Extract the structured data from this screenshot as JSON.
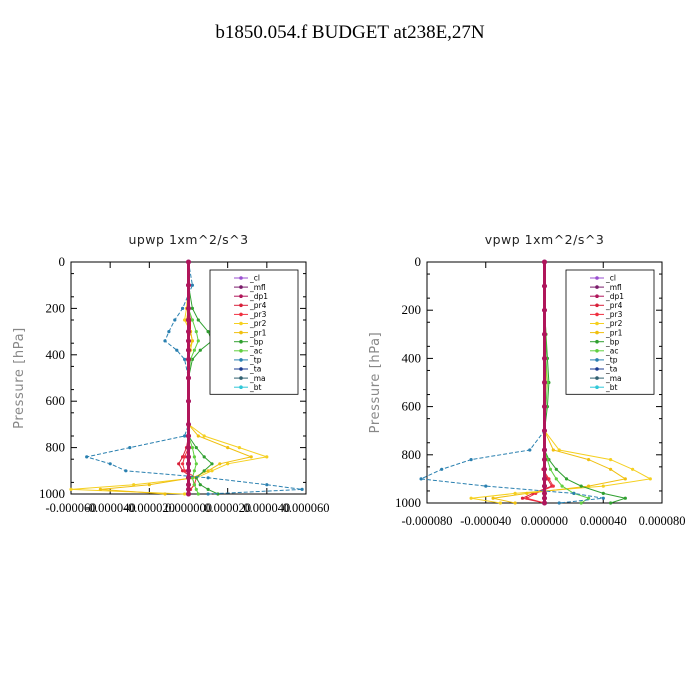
{
  "title": "b1850.054.f  BUDGET at238E,27N",
  "colors": {
    "_cl": "#9a4fd0",
    "_mfl": "#7a1a6a",
    "_dp1": "#b0155a",
    "_pr4": "#d8203a",
    "_pr3": "#f03040",
    "_pr2": "#f5d020",
    "_pr1": "#f0c010",
    "_bp": "#30a030",
    "_ac": "#60d040",
    "_tp": "#2a80b0",
    "_ta": "#1a3a90",
    "_ma": "#306070",
    "_bt": "#30c8d8"
  },
  "chart_data": [
    {
      "type": "line",
      "title": "upwp   1xm^2/s^3",
      "ylabel": "Pressure [hPa]",
      "xlabel": "",
      "ylim": [
        1000,
        0
      ],
      "xlim": [
        -6e-05,
        6e-05
      ],
      "yticks": [
        0,
        200,
        400,
        600,
        800,
        1000
      ],
      "xtick_labels": [
        "-0.000060",
        "-0.000040",
        "-0.000020",
        "0.000000",
        "0.000020",
        "0.000040",
        "0.000060"
      ],
      "xticks": [
        -6e-05,
        -4e-05,
        -2e-05,
        0,
        2e-05,
        4e-05,
        6e-05
      ],
      "grid": false,
      "legend_position": "top-right",
      "legend": [
        "_cl",
        "_mfl",
        "_dp1",
        "_pr4",
        "_pr3",
        "_pr2",
        "_pr1",
        "_bp",
        "_ac",
        "_tp",
        "_ta",
        "_ma",
        "_bt"
      ],
      "p": [
        0,
        100,
        200,
        250,
        300,
        340,
        380,
        420,
        500,
        600,
        700,
        750,
        800,
        840,
        870,
        900,
        930,
        960,
        980,
        1000
      ],
      "series": [
        {
          "name": "_cl",
          "values": [
            0,
            0,
            0,
            0,
            0,
            0,
            0,
            0,
            0,
            0,
            0,
            0,
            0,
            0,
            0,
            0,
            0,
            0,
            0,
            0
          ]
        },
        {
          "name": "_mfl",
          "values": [
            0,
            0,
            0,
            0,
            0,
            0,
            0,
            0,
            0,
            0,
            0,
            0,
            0,
            0,
            0,
            0,
            0,
            0,
            0,
            0
          ]
        },
        {
          "name": "_dp1",
          "values": [
            0,
            0,
            0,
            0,
            0,
            0,
            0,
            0,
            0,
            0,
            0,
            0,
            0,
            0,
            0,
            0,
            0,
            0,
            0,
            0
          ]
        },
        {
          "name": "_pr4",
          "values": [
            0,
            0,
            0,
            1e-06,
            1e-06,
            0,
            0,
            0,
            0,
            0,
            0,
            0,
            -1e-06,
            -3e-06,
            -5e-06,
            -3e-06,
            2e-06,
            3e-06,
            1e-06,
            0
          ]
        },
        {
          "name": "_pr3",
          "values": [
            0,
            0,
            0,
            0,
            0,
            0,
            0,
            0,
            0,
            0,
            0,
            0,
            0,
            -2e-06,
            -3e-06,
            -2e-06,
            4e-06,
            3e-06,
            1e-06,
            0
          ]
        },
        {
          "name": "_pr2",
          "values": [
            0,
            0,
            -1e-06,
            -2e-06,
            1e-06,
            2e-06,
            1e-06,
            0,
            0,
            0,
            0,
            8e-06,
            2.6e-05,
            4e-05,
            2e-05,
            1.2e-05,
            4e-06,
            -2.8e-05,
            -6e-05,
            -2e-06
          ]
        },
        {
          "name": "_pr1",
          "values": [
            0,
            0,
            0,
            -1e-06,
            1e-06,
            2e-06,
            0,
            0,
            0,
            0,
            0,
            5e-06,
            2e-05,
            3.2e-05,
            1.6e-05,
            1e-05,
            2e-06,
            -2e-05,
            -4.5e-05,
            -1.2e-05
          ]
        },
        {
          "name": "_bp",
          "values": [
            0,
            0,
            2e-06,
            5e-06,
            1e-05,
            1.2e-05,
            6e-06,
            2e-06,
            0,
            0,
            0,
            0,
            4e-06,
            8e-06,
            1.2e-05,
            8e-06,
            4e-06,
            6e-06,
            1e-05,
            1.5e-05
          ]
        },
        {
          "name": "_ac",
          "values": [
            0,
            0,
            0,
            2e-06,
            4e-06,
            5e-06,
            3e-06,
            1e-06,
            0,
            0,
            0,
            0,
            2e-06,
            3e-06,
            4e-06,
            3e-06,
            2e-06,
            3e-06,
            4e-06,
            5e-06
          ]
        },
        {
          "name": "_tp",
          "values": [
            0,
            2e-06,
            -3e-06,
            -7e-06,
            -1e-05,
            -1.2e-05,
            -6e-06,
            -2e-06,
            0,
            0,
            0,
            -2e-06,
            -3e-05,
            -5.2e-05,
            -4e-05,
            -3.2e-05,
            1e-05,
            4e-05,
            5.8e-05,
            1e-05
          ]
        },
        {
          "name": "_ta",
          "values": [
            0,
            0,
            0,
            0,
            0,
            0,
            0,
            0,
            0,
            0,
            0,
            0,
            0,
            0,
            0,
            0,
            0,
            0,
            0,
            0
          ]
        },
        {
          "name": "_ma",
          "values": [
            0,
            0,
            0,
            0,
            0,
            0,
            0,
            0,
            0,
            0,
            0,
            0,
            0,
            0,
            0,
            0,
            0,
            0,
            0,
            0
          ]
        },
        {
          "name": "_bt",
          "values": [
            0,
            0,
            0,
            0,
            0,
            0,
            0,
            0,
            0,
            0,
            0,
            0,
            0,
            0,
            0,
            0,
            0,
            0,
            0,
            0
          ]
        }
      ]
    },
    {
      "type": "line",
      "title": "vpwp   1xm^2/s^3",
      "ylabel": "Pressure [hPa]",
      "xlabel": "",
      "ylim": [
        1000,
        0
      ],
      "xlim": [
        -8e-05,
        8e-05
      ],
      "yticks": [
        0,
        200,
        400,
        600,
        800,
        1000
      ],
      "xtick_labels": [
        "-0.000080",
        "-0.000040",
        "0.000000",
        "0.000040",
        "0.000080"
      ],
      "xticks": [
        -8e-05,
        -4e-05,
        0,
        4e-05,
        8e-05
      ],
      "grid": false,
      "legend_position": "top-right",
      "legend": [
        "_cl",
        "_mfl",
        "_dp1",
        "_pr4",
        "_pr3",
        "_pr2",
        "_pr1",
        "_bp",
        "_ac",
        "_tp",
        "_ta",
        "_ma",
        "_bt"
      ],
      "p": [
        0,
        100,
        200,
        300,
        400,
        500,
        600,
        700,
        780,
        820,
        860,
        900,
        930,
        960,
        980,
        1000
      ],
      "series": [
        {
          "name": "_cl",
          "values": [
            0,
            0,
            0,
            0,
            0,
            0,
            0,
            0,
            0,
            0,
            0,
            0,
            0,
            0,
            0,
            0
          ]
        },
        {
          "name": "_mfl",
          "values": [
            0,
            0,
            0,
            0,
            0,
            0,
            0,
            0,
            0,
            0,
            0,
            0,
            0,
            0,
            0,
            0
          ]
        },
        {
          "name": "_dp1",
          "values": [
            0,
            0,
            0,
            0,
            0,
            0,
            0,
            0,
            0,
            0,
            0,
            0,
            0,
            0,
            0,
            0
          ]
        },
        {
          "name": "_pr4",
          "values": [
            0,
            0,
            0,
            0,
            0,
            0,
            0,
            0,
            0,
            0,
            -1e-06,
            2e-06,
            5e-06,
            -8e-06,
            -1.5e-05,
            0
          ]
        },
        {
          "name": "_pr3",
          "values": [
            0,
            0,
            0,
            0,
            0,
            0,
            0,
            0,
            0,
            0,
            -1e-06,
            3e-06,
            6e-06,
            -6e-06,
            -1.2e-05,
            0
          ]
        },
        {
          "name": "_pr2",
          "values": [
            0,
            0,
            0,
            0,
            1e-06,
            1e-06,
            0,
            0,
            1e-05,
            4.5e-05,
            6e-05,
            7.2e-05,
            4e-05,
            -2e-05,
            -5e-05,
            -3e-05
          ]
        },
        {
          "name": "_pr1",
          "values": [
            0,
            0,
            0,
            0,
            0,
            1e-06,
            0,
            0,
            6e-06,
            3e-05,
            4.5e-05,
            5.5e-05,
            3e-05,
            -1.2e-05,
            -3.5e-05,
            -2e-05
          ]
        },
        {
          "name": "_bp",
          "values": [
            0,
            0,
            0,
            1e-06,
            2e-06,
            3e-06,
            2e-06,
            0,
            0,
            3e-06,
            8e-06,
            1.5e-05,
            2.5e-05,
            4e-05,
            5.5e-05,
            4.5e-05
          ]
        },
        {
          "name": "_ac",
          "values": [
            0,
            0,
            0,
            1e-06,
            1e-06,
            2e-06,
            1e-06,
            0,
            0,
            2e-06,
            4e-06,
            8e-06,
            1.2e-05,
            2e-05,
            3e-05,
            2.5e-05
          ]
        },
        {
          "name": "_tp",
          "values": [
            0,
            0,
            0,
            0,
            0,
            0,
            0,
            0,
            -1e-05,
            -5e-05,
            -7e-05,
            -8.4e-05,
            -4e-05,
            2e-05,
            4e-05,
            1e-05
          ]
        },
        {
          "name": "_ta",
          "values": [
            0,
            0,
            0,
            0,
            0,
            0,
            0,
            0,
            0,
            0,
            0,
            0,
            0,
            0,
            0,
            0
          ]
        },
        {
          "name": "_ma",
          "values": [
            0,
            0,
            0,
            0,
            0,
            0,
            0,
            0,
            0,
            0,
            0,
            0,
            0,
            0,
            0,
            0
          ]
        },
        {
          "name": "_bt",
          "values": [
            0,
            0,
            0,
            0,
            0,
            0,
            0,
            0,
            0,
            0,
            0,
            0,
            0,
            0,
            0,
            0
          ]
        }
      ]
    }
  ]
}
